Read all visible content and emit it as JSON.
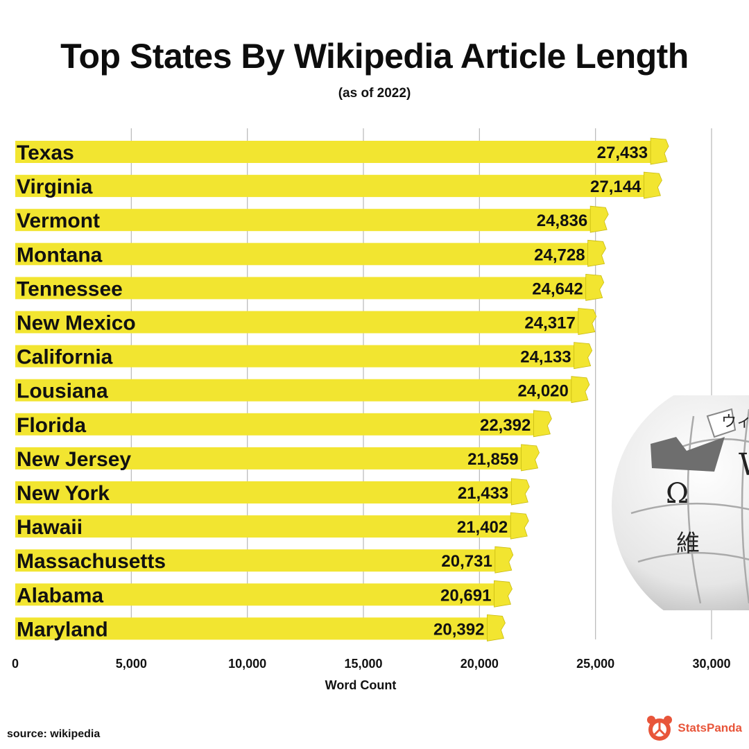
{
  "title": "Top States By Wikipedia Article Length",
  "subtitle": "(as of 2022)",
  "source": "source: wikipedia",
  "brand": "StatsPanda",
  "colors": {
    "bar": "#f2e530",
    "text": "#111111",
    "grid": "#b8b8b8",
    "brand": "#e8553a"
  },
  "chart_data": {
    "type": "bar",
    "orientation": "horizontal",
    "categories": [
      "Texas",
      "Virginia",
      "Vermont",
      "Montana",
      "Tennessee",
      "New Mexico",
      "California",
      "Lousiana",
      "Florida",
      "New Jersey",
      "New York",
      "Hawaii",
      "Massachusetts",
      "Alabama",
      "Maryland"
    ],
    "values": [
      27433,
      27144,
      24836,
      24728,
      24642,
      24317,
      24133,
      24020,
      22392,
      21859,
      21433,
      21402,
      20731,
      20691,
      20392
    ],
    "value_labels": [
      "27,433",
      "27,144",
      "24,836",
      "24,728",
      "24,642",
      "24,317",
      "24,133",
      "24,020",
      "22,392",
      "21,859",
      "21,433",
      "21,402",
      "20,731",
      "20,691",
      "20,392"
    ],
    "xlabel": "Word Count",
    "xlim": [
      0,
      30000
    ],
    "xticks": [
      0,
      5000,
      10000,
      15000,
      20000,
      25000,
      30000
    ],
    "xtick_labels": [
      "0",
      "5,000",
      "10,000",
      "15,000",
      "20,000",
      "25,000",
      "30,000"
    ],
    "grid": true
  },
  "globe_glyphs": [
    "Ω",
    "維",
    "W",
    "ウィ"
  ]
}
